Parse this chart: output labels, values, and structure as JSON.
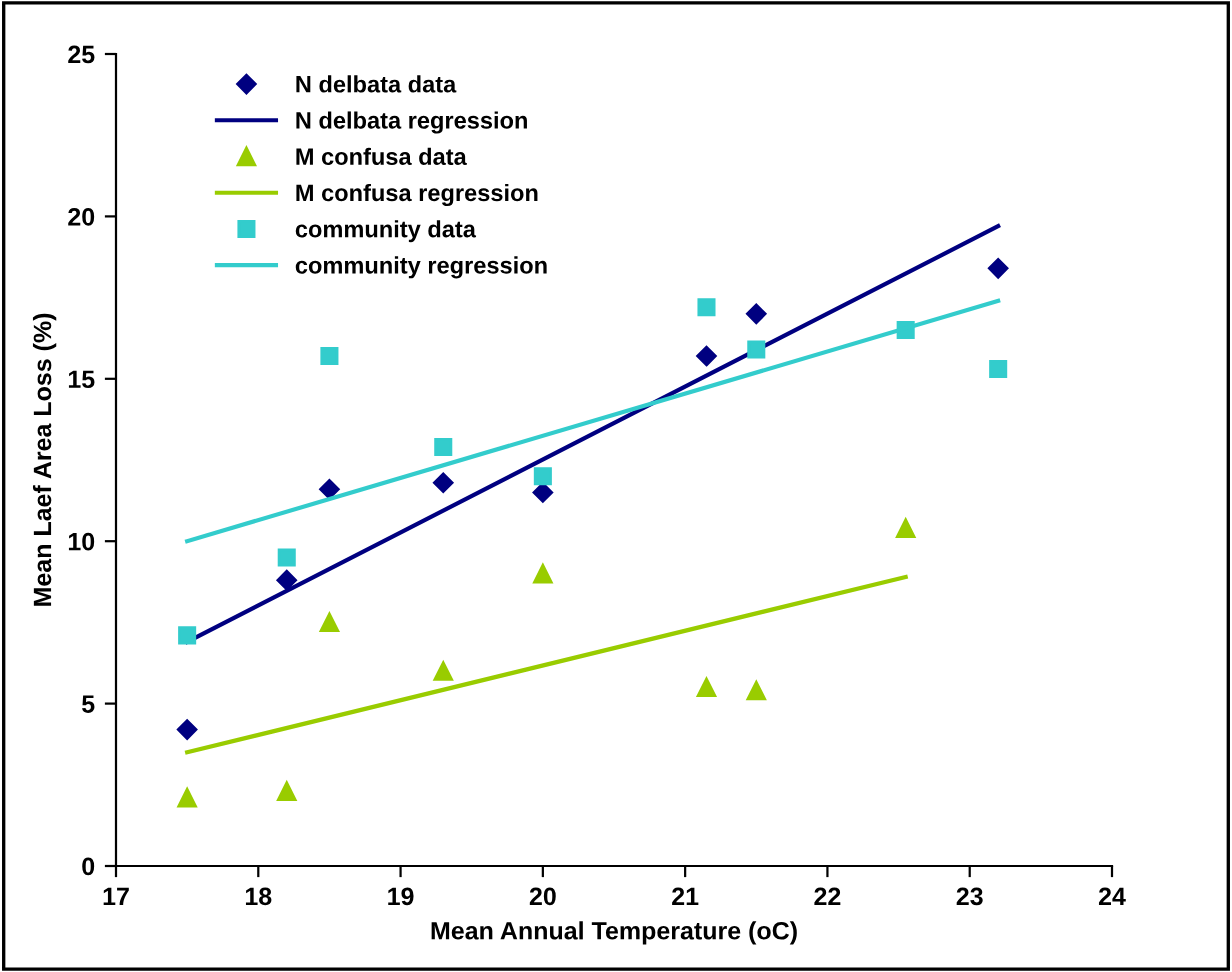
{
  "chart_data": {
    "type": "scatter",
    "xlabel": "Mean Annual Temperature (oC)",
    "ylabel": "Mean Laef Area Loss (%)",
    "xlim": [
      17,
      24
    ],
    "xticks": [
      17,
      18,
      19,
      20,
      21,
      22,
      23,
      24
    ],
    "ylim": [
      0,
      25
    ],
    "yticks": [
      0,
      5,
      10,
      15,
      20,
      25
    ],
    "grid": false,
    "legend": "top left",
    "series": [
      {
        "name": "N delbata data",
        "marker": "diamond",
        "color": "#000080",
        "x": [
          17.5,
          18.2,
          18.5,
          19.3,
          20.0,
          21.15,
          21.5,
          23.2
        ],
        "values": [
          4.2,
          8.8,
          11.6,
          11.8,
          11.5,
          15.7,
          17.0,
          18.4
        ]
      },
      {
        "name": "N delbata regression",
        "type": "line",
        "marker": "none",
        "color": "#000080",
        "x": [
          17.5,
          23.2
        ],
        "values": [
          6.9,
          19.7
        ]
      },
      {
        "name": "M confusa data",
        "marker": "triangle",
        "color": "#99cc00",
        "x": [
          17.5,
          18.2,
          18.5,
          19.3,
          20.0,
          21.15,
          21.5,
          22.55
        ],
        "values": [
          2.1,
          2.3,
          7.5,
          6.0,
          9.0,
          5.5,
          5.4,
          10.4
        ]
      },
      {
        "name": "M confusa regression",
        "type": "line",
        "marker": "none",
        "color": "#99cc00",
        "x": [
          17.5,
          22.55
        ],
        "values": [
          3.5,
          8.9
        ]
      },
      {
        "name": "community data",
        "marker": "square",
        "color": "#33cccc",
        "x": [
          17.5,
          18.2,
          18.5,
          19.3,
          20.0,
          21.15,
          21.5,
          22.55,
          23.2
        ],
        "values": [
          7.1,
          9.5,
          15.7,
          12.9,
          12.0,
          17.2,
          15.9,
          16.5,
          15.3
        ]
      },
      {
        "name": "community regression",
        "type": "line",
        "marker": "none",
        "color": "#33cccc",
        "x": [
          17.5,
          23.2
        ],
        "values": [
          10.0,
          17.4
        ]
      }
    ]
  }
}
